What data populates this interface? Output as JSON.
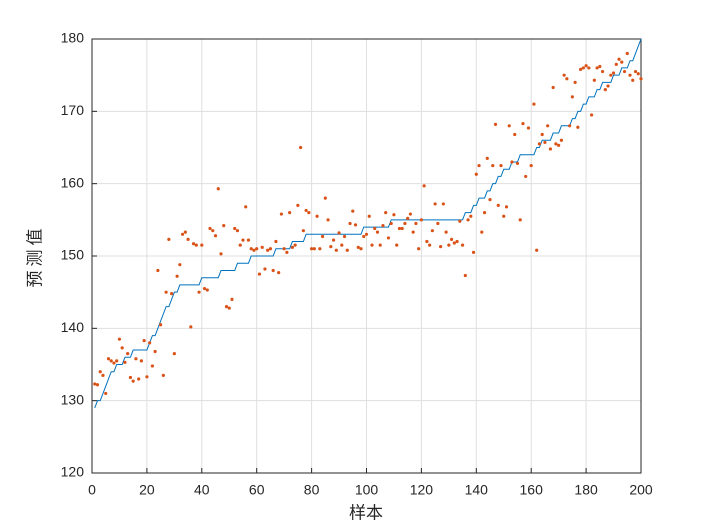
{
  "chart_data": {
    "type": "line+scatter",
    "xlabel": "样本",
    "ylabel": "预测值",
    "xlim": [
      0,
      200
    ],
    "xticks": [
      0,
      20,
      40,
      60,
      80,
      100,
      120,
      140,
      160,
      180,
      200
    ],
    "ylim": [
      120,
      180
    ],
    "yticks": [
      120,
      130,
      140,
      150,
      160,
      170,
      180
    ],
    "grid": true,
    "x": [
      1,
      2,
      3,
      4,
      5,
      6,
      7,
      8,
      9,
      10,
      11,
      12,
      13,
      14,
      15,
      16,
      17,
      18,
      19,
      20,
      21,
      22,
      23,
      24,
      25,
      26,
      27,
      28,
      29,
      30,
      31,
      32,
      33,
      34,
      35,
      36,
      37,
      38,
      39,
      40,
      41,
      42,
      43,
      44,
      45,
      46,
      47,
      48,
      49,
      50,
      51,
      52,
      53,
      54,
      55,
      56,
      57,
      58,
      59,
      60,
      61,
      62,
      63,
      64,
      65,
      66,
      67,
      68,
      69,
      70,
      71,
      72,
      73,
      74,
      75,
      76,
      77,
      78,
      79,
      80,
      81,
      82,
      83,
      84,
      85,
      86,
      87,
      88,
      89,
      90,
      91,
      92,
      93,
      94,
      95,
      96,
      97,
      98,
      99,
      100,
      101,
      102,
      103,
      104,
      105,
      106,
      107,
      108,
      109,
      110,
      111,
      112,
      113,
      114,
      115,
      116,
      117,
      118,
      119,
      120,
      121,
      122,
      123,
      124,
      125,
      126,
      127,
      128,
      129,
      130,
      131,
      132,
      133,
      134,
      135,
      136,
      137,
      138,
      139,
      140,
      141,
      142,
      143,
      144,
      145,
      146,
      147,
      148,
      149,
      150,
      151,
      152,
      153,
      154,
      155,
      156,
      157,
      158,
      159,
      160,
      161,
      162,
      163,
      164,
      165,
      166,
      167,
      168,
      169,
      170,
      171,
      172,
      173,
      174,
      175,
      176,
      177,
      178,
      179,
      180,
      181,
      182,
      183,
      184,
      185,
      186,
      187,
      188,
      189,
      190,
      191,
      192,
      193,
      194,
      195,
      196,
      197,
      198,
      199,
      200
    ],
    "series": [
      {
        "type": "line",
        "color": "#0072bd",
        "values": [
          129,
          130,
          130,
          131,
          132,
          133,
          134,
          134,
          135,
          135,
          135,
          136,
          136,
          136,
          137,
          137,
          137,
          137,
          137,
          137,
          138,
          139,
          139,
          140,
          141,
          142,
          143,
          143,
          144,
          145,
          145,
          146,
          146,
          146,
          146,
          146,
          146,
          146,
          146,
          147,
          147,
          147,
          147,
          147,
          147,
          147,
          148,
          148,
          148,
          148,
          148,
          148,
          149,
          149,
          149,
          149,
          149,
          150,
          150,
          150,
          150,
          150,
          150,
          150,
          150,
          150,
          151,
          151,
          151,
          151,
          151,
          151,
          152,
          152,
          152,
          152,
          152,
          153,
          153,
          153,
          153,
          153,
          153,
          153,
          153,
          153,
          153,
          153,
          153,
          153,
          153,
          153,
          153,
          153,
          153,
          153,
          153,
          153,
          154,
          154,
          154,
          154,
          154,
          154,
          154,
          154,
          154,
          154,
          155,
          155,
          155,
          155,
          155,
          155,
          155,
          155,
          155,
          155,
          155,
          155,
          155,
          155,
          155,
          155,
          155,
          155,
          155,
          155,
          155,
          155,
          155,
          155,
          155,
          155,
          155,
          156,
          156,
          156,
          157,
          157,
          158,
          158,
          158,
          159,
          159,
          160,
          160,
          161,
          161,
          162,
          162,
          162,
          163,
          163,
          163,
          164,
          164,
          164,
          164,
          164,
          164,
          165,
          165,
          166,
          166,
          166,
          166,
          167,
          167,
          167,
          168,
          168,
          168,
          168,
          169,
          169,
          170,
          170,
          171,
          171,
          172,
          172,
          172,
          173,
          173,
          174,
          174,
          174,
          174,
          175,
          175,
          175,
          176,
          176,
          176,
          177,
          177,
          178,
          179,
          180
        ]
      },
      {
        "type": "scatter",
        "color": "#d95319",
        "values": [
          132.3,
          132.2,
          134,
          133.5,
          131,
          135.8,
          135.5,
          135.2,
          135.5,
          138.5,
          137.3,
          135.3,
          136.5,
          133.2,
          132.7,
          135.8,
          133,
          135.5,
          138.3,
          133.3,
          138,
          134.8,
          136.8,
          148,
          140.5,
          133.5,
          145,
          152.3,
          144.8,
          136.5,
          147.2,
          148.8,
          153,
          153.3,
          152.3,
          140.2,
          151.7,
          151.5,
          145,
          151.5,
          145.5,
          145.3,
          153.8,
          153.5,
          152.8,
          159.3,
          150.3,
          154.2,
          143,
          142.8,
          144,
          153.8,
          153.5,
          151.5,
          152.2,
          156.8,
          152.2,
          151,
          150.8,
          151,
          147.5,
          151.2,
          148.2,
          150.8,
          151,
          148,
          152,
          147.7,
          155.8,
          151,
          150.5,
          156,
          151.2,
          151.5,
          157,
          165,
          153.5,
          156.3,
          156,
          151,
          151,
          155.5,
          151,
          152.7,
          158,
          155,
          151.3,
          152.2,
          150.8,
          153.2,
          151.5,
          152.7,
          150.8,
          154.5,
          156.2,
          154.3,
          151.2,
          151,
          152.7,
          153,
          155.5,
          151.5,
          153.8,
          153.3,
          151.5,
          154.2,
          156,
          152.5,
          154.5,
          155.7,
          151.5,
          153.8,
          153.8,
          154.5,
          155.2,
          155.8,
          153.3,
          154.5,
          151,
          155,
          159.7,
          152,
          151.5,
          153.5,
          157.2,
          154.5,
          151.3,
          157.2,
          153.3,
          151.5,
          152.3,
          151.8,
          152,
          154.8,
          151.5,
          147.3,
          155,
          155.5,
          150.5,
          161.3,
          162.5,
          153.3,
          156,
          163.5,
          157.8,
          162.5,
          168.2,
          157,
          162.5,
          155.5,
          156.8,
          168,
          163,
          166.8,
          162.8,
          155,
          168.3,
          161,
          167.7,
          162.5,
          171,
          150.8,
          165.5,
          166.8,
          165.7,
          168,
          164.8,
          173.3,
          165.5,
          165.3,
          166,
          175,
          174.5,
          168,
          172,
          174,
          167.8,
          175.8,
          176,
          176.3,
          176,
          169.5,
          174.3,
          176,
          176.2,
          175.5,
          173,
          173.5,
          175,
          175.3,
          176.5,
          177.2,
          176.8,
          175.5,
          178,
          175,
          174.3,
          175.5,
          175.2,
          174.5
        ]
      }
    ]
  }
}
